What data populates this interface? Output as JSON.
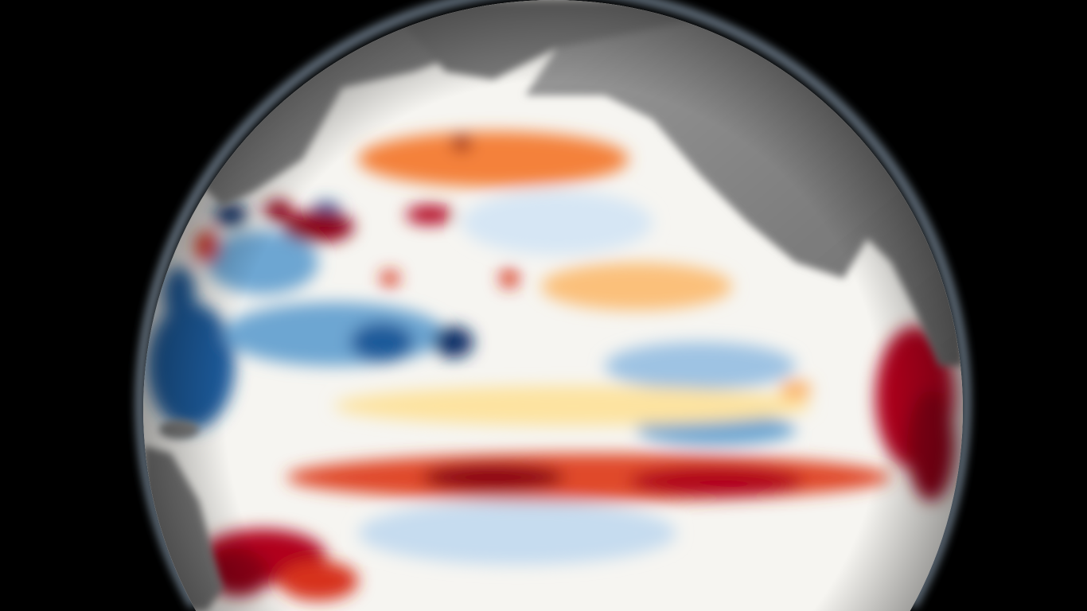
{
  "view": {
    "type": "globe-sea-surface-temperature-anomaly",
    "colors": {
      "background": "#000000",
      "land": "#8a8a8a",
      "atmosphere_glow": "#bcd6ee",
      "neutral": "#f7f7f4",
      "warm_light": "#fde3a0",
      "warm": "#f4813a",
      "hot": "#d7301f",
      "hottest": "#8c0018",
      "cool_light": "#d6e6f4",
      "cool": "#6da6d2",
      "cold": "#1f5a9a",
      "coldest": "#0a2e66"
    }
  }
}
